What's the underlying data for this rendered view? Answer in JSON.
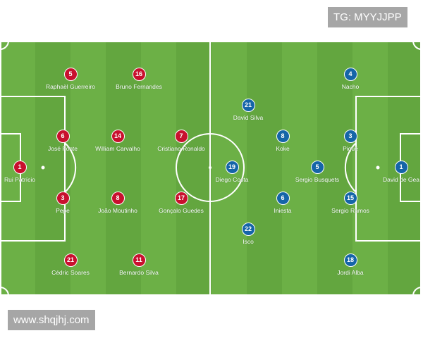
{
  "watermark_top": "TG: MYYJJPP",
  "watermark_bottom": "www.shqjhj.com",
  "colors": {
    "pitch_light": "#6cb046",
    "pitch_dark": "#63a63f",
    "lines": "#ffffff",
    "portugal": "#c8102e",
    "spain": "#1565a8"
  },
  "teams": [
    {
      "side": "left",
      "color_key": "portugal",
      "players": [
        {
          "number": "1",
          "name": "Rui Patrício"
        },
        {
          "number": "5",
          "name": "Raphaël Guerreiro"
        },
        {
          "number": "16",
          "name": "Bruno Fernandes"
        },
        {
          "number": "6",
          "name": "José Fonte"
        },
        {
          "number": "14",
          "name": "William Carvalho"
        },
        {
          "number": "7",
          "name": "Cristiano Ronaldo"
        },
        {
          "number": "3",
          "name": "Pepe"
        },
        {
          "number": "8",
          "name": "João Moutinho"
        },
        {
          "number": "17",
          "name": "Gonçalo Guedes"
        },
        {
          "number": "21",
          "name": "Cédric Soares"
        },
        {
          "number": "11",
          "name": "Bernardo Silva"
        }
      ]
    },
    {
      "side": "right",
      "color_key": "spain",
      "players": [
        {
          "number": "1",
          "name": "David de Gea"
        },
        {
          "number": "4",
          "name": "Nacho"
        },
        {
          "number": "21",
          "name": "David Silva"
        },
        {
          "number": "8",
          "name": "Koke"
        },
        {
          "number": "3",
          "name": "Piqué"
        },
        {
          "number": "19",
          "name": "Diego Costa"
        },
        {
          "number": "5",
          "name": "Sergio Busquets"
        },
        {
          "number": "6",
          "name": "Iniesta"
        },
        {
          "number": "15",
          "name": "Sergio Ramos"
        },
        {
          "number": "22",
          "name": "Isco"
        },
        {
          "number": "18",
          "name": "Jordi Alba"
        }
      ]
    }
  ]
}
